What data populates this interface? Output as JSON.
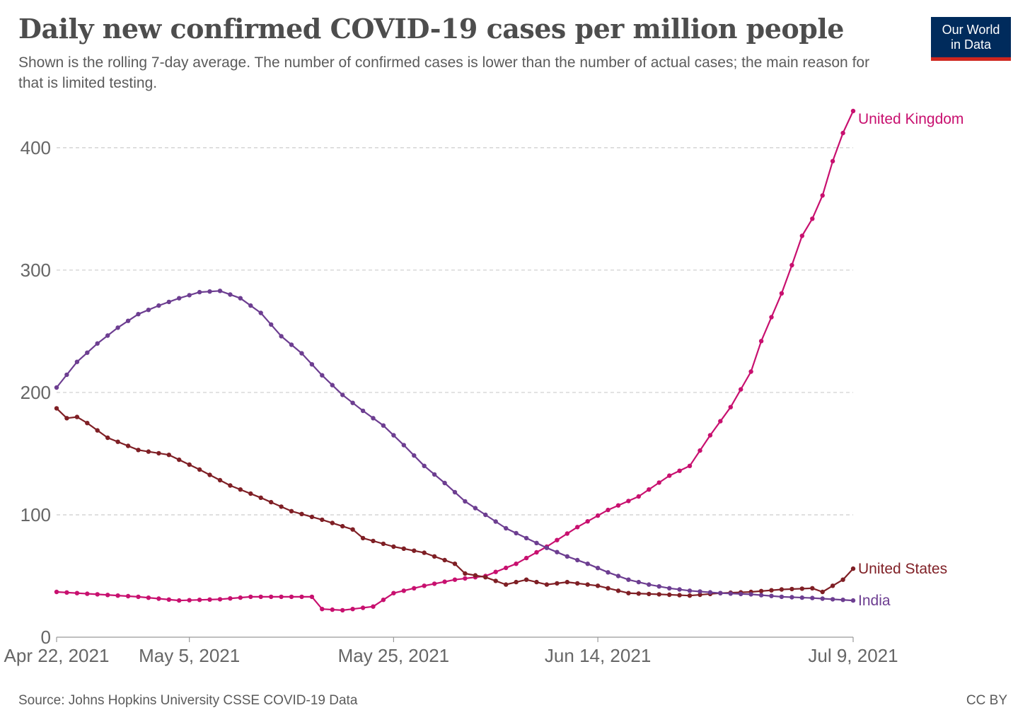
{
  "header": {
    "title": "Daily new confirmed COVID-19 cases per million people",
    "subtitle": "Shown is the rolling 7-day average. The number of confirmed cases is lower than the number of actual cases; the main reason for that is limited testing."
  },
  "logo": {
    "line1": "Our World",
    "line2": "in Data",
    "background": "#002b5c",
    "stripe": "#ce261e"
  },
  "footer": {
    "source": "Source: Johns Hopkins University CSSE COVID-19 Data",
    "license": "CC BY"
  },
  "chart_data": {
    "type": "line",
    "x_start": "2021-04-22",
    "x_end": "2021-07-09",
    "ylim": [
      0,
      430
    ],
    "grid": true,
    "y_ticks": [
      {
        "value": 0,
        "label": "0"
      },
      {
        "value": 100,
        "label": "100"
      },
      {
        "value": 200,
        "label": "200"
      },
      {
        "value": 300,
        "label": "300"
      },
      {
        "value": 400,
        "label": "400"
      }
    ],
    "x_ticks": [
      {
        "date": "2021-04-22",
        "label": "Apr 22, 2021"
      },
      {
        "date": "2021-05-05",
        "label": "May 5, 2021"
      },
      {
        "date": "2021-05-25",
        "label": "May 25, 2021"
      },
      {
        "date": "2021-06-14",
        "label": "Jun 14, 2021"
      },
      {
        "date": "2021-07-09",
        "label": "Jul 9, 2021"
      }
    ],
    "series": [
      {
        "name": "United Kingdom",
        "color": "#c8106f",
        "points": [
          [
            "2021-04-22",
            37
          ],
          [
            "2021-04-26",
            35
          ],
          [
            "2021-04-30",
            33
          ],
          [
            "2021-05-04",
            30
          ],
          [
            "2021-05-08",
            31
          ],
          [
            "2021-05-11",
            33
          ],
          [
            "2021-05-15",
            33
          ],
          [
            "2021-05-17",
            33
          ],
          [
            "2021-05-18",
            23
          ],
          [
            "2021-05-20",
            22
          ],
          [
            "2021-05-23",
            25
          ],
          [
            "2021-05-25",
            36
          ],
          [
            "2021-05-28",
            42
          ],
          [
            "2021-05-31",
            47
          ],
          [
            "2021-06-03",
            50
          ],
          [
            "2021-06-06",
            60
          ],
          [
            "2021-06-09",
            74
          ],
          [
            "2021-06-12",
            90
          ],
          [
            "2021-06-15",
            104
          ],
          [
            "2021-06-18",
            115
          ],
          [
            "2021-06-21",
            132
          ],
          [
            "2021-06-23",
            140
          ],
          [
            "2021-06-25",
            165
          ],
          [
            "2021-06-27",
            188
          ],
          [
            "2021-06-29",
            217
          ],
          [
            "2021-06-30",
            242
          ],
          [
            "2021-07-02",
            281
          ],
          [
            "2021-07-03",
            304
          ],
          [
            "2021-07-04",
            328
          ],
          [
            "2021-07-05",
            342
          ],
          [
            "2021-07-06",
            361
          ],
          [
            "2021-07-07",
            389
          ],
          [
            "2021-07-08",
            412
          ],
          [
            "2021-07-09",
            430
          ]
        ]
      },
      {
        "name": "United States",
        "color": "#7f1f25",
        "points": [
          [
            "2021-04-22",
            187
          ],
          [
            "2021-04-23",
            179
          ],
          [
            "2021-04-24",
            180
          ],
          [
            "2021-04-25",
            175
          ],
          [
            "2021-04-27",
            163
          ],
          [
            "2021-04-30",
            153
          ],
          [
            "2021-05-03",
            149
          ],
          [
            "2021-05-06",
            137
          ],
          [
            "2021-05-09",
            124
          ],
          [
            "2021-05-12",
            114
          ],
          [
            "2021-05-15",
            103
          ],
          [
            "2021-05-18",
            96
          ],
          [
            "2021-05-21",
            88
          ],
          [
            "2021-05-22",
            81
          ],
          [
            "2021-05-25",
            74
          ],
          [
            "2021-05-28",
            69
          ],
          [
            "2021-05-31",
            60
          ],
          [
            "2021-06-01",
            52
          ],
          [
            "2021-06-03",
            49
          ],
          [
            "2021-06-05",
            43
          ],
          [
            "2021-06-07",
            47
          ],
          [
            "2021-06-09",
            43
          ],
          [
            "2021-06-11",
            45
          ],
          [
            "2021-06-14",
            42
          ],
          [
            "2021-06-17",
            36
          ],
          [
            "2021-06-20",
            35
          ],
          [
            "2021-06-23",
            34
          ],
          [
            "2021-06-26",
            36
          ],
          [
            "2021-06-29",
            37
          ],
          [
            "2021-07-02",
            39
          ],
          [
            "2021-07-05",
            40
          ],
          [
            "2021-07-06",
            37
          ],
          [
            "2021-07-07",
            42
          ],
          [
            "2021-07-08",
            47
          ],
          [
            "2021-07-09",
            56
          ]
        ]
      },
      {
        "name": "India",
        "color": "#6d3e91",
        "points": [
          [
            "2021-04-22",
            204
          ],
          [
            "2021-04-24",
            225
          ],
          [
            "2021-04-26",
            240
          ],
          [
            "2021-04-28",
            253
          ],
          [
            "2021-04-30",
            264
          ],
          [
            "2021-05-02",
            271
          ],
          [
            "2021-05-04",
            277
          ],
          [
            "2021-05-06",
            282
          ],
          [
            "2021-05-08",
            283
          ],
          [
            "2021-05-10",
            277
          ],
          [
            "2021-05-12",
            265
          ],
          [
            "2021-05-14",
            246
          ],
          [
            "2021-05-16",
            232
          ],
          [
            "2021-05-18",
            214
          ],
          [
            "2021-05-20",
            198
          ],
          [
            "2021-05-22",
            185
          ],
          [
            "2021-05-24",
            173
          ],
          [
            "2021-05-26",
            157
          ],
          [
            "2021-05-28",
            140
          ],
          [
            "2021-05-30",
            126
          ],
          [
            "2021-06-01",
            111
          ],
          [
            "2021-06-03",
            100
          ],
          [
            "2021-06-05",
            89
          ],
          [
            "2021-06-07",
            81
          ],
          [
            "2021-06-09",
            73
          ],
          [
            "2021-06-11",
            66
          ],
          [
            "2021-06-13",
            60
          ],
          [
            "2021-06-15",
            53
          ],
          [
            "2021-06-17",
            47
          ],
          [
            "2021-06-19",
            43
          ],
          [
            "2021-06-21",
            40
          ],
          [
            "2021-06-23",
            38
          ],
          [
            "2021-06-26",
            36
          ],
          [
            "2021-06-29",
            35
          ],
          [
            "2021-07-02",
            33
          ],
          [
            "2021-07-05",
            32
          ],
          [
            "2021-07-09",
            30
          ]
        ]
      }
    ]
  }
}
